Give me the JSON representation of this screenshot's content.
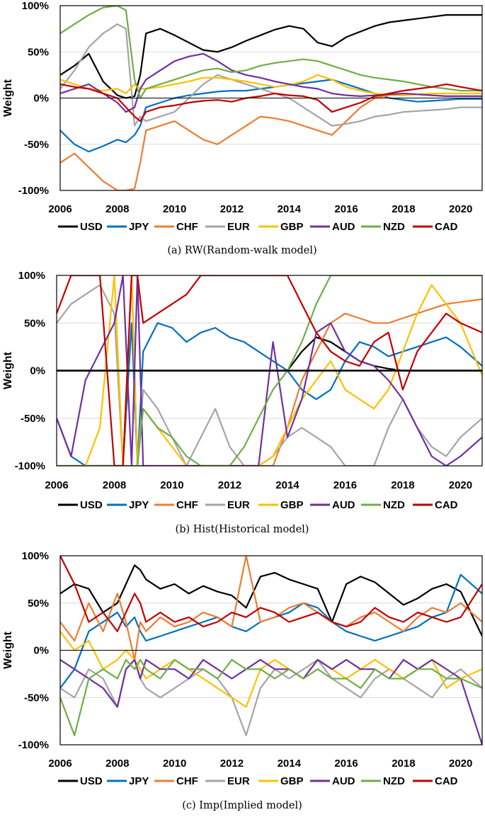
{
  "chart_data": [
    {
      "type": "line",
      "title": "",
      "caption": "(a) RW(Random-walk model)",
      "xlabel": "",
      "ylabel": "Weight",
      "xlim": [
        2006,
        2020.75
      ],
      "ylim": [
        -100,
        100
      ],
      "x_ticks": [
        "2006",
        "2008",
        "2010",
        "2012",
        "2014",
        "2016",
        "2018",
        "2020"
      ],
      "y_ticks": [
        "100%",
        "50%",
        "0%",
        "-50%",
        "-100%"
      ],
      "x": [
        2006,
        2006.5,
        2007,
        2007.5,
        2008,
        2008.3,
        2008.6,
        2008.8,
        2009,
        2009.5,
        2010,
        2010.5,
        2011,
        2011.5,
        2012,
        2012.5,
        2013,
        2013.5,
        2014,
        2014.5,
        2015,
        2015.5,
        2016,
        2016.5,
        2017,
        2017.5,
        2018,
        2018.5,
        2019,
        2019.5,
        2020,
        2020.75
      ],
      "series": [
        {
          "name": "USD",
          "values": [
            25,
            35,
            48,
            18,
            3,
            0,
            2,
            25,
            70,
            75,
            68,
            60,
            52,
            50,
            55,
            62,
            68,
            74,
            78,
            75,
            60,
            56,
            66,
            72,
            78,
            82,
            84,
            86,
            88,
            90,
            90,
            90
          ]
        },
        {
          "name": "JPY",
          "values": [
            -35,
            -50,
            -58,
            -52,
            -45,
            -48,
            -40,
            -30,
            -10,
            -5,
            0,
            3,
            5,
            7,
            8,
            8,
            10,
            12,
            14,
            16,
            18,
            20,
            15,
            10,
            5,
            0,
            -2,
            -4,
            -3,
            -2,
            -1,
            -1
          ]
        },
        {
          "name": "CHF",
          "values": [
            -70,
            -60,
            -75,
            -90,
            -100,
            -100,
            -98,
            -70,
            -35,
            -30,
            -25,
            -35,
            -45,
            -50,
            -40,
            -30,
            -20,
            -22,
            -25,
            -30,
            -35,
            -40,
            -25,
            -10,
            0,
            3,
            5,
            4,
            3,
            2,
            2,
            2
          ]
        },
        {
          "name": "EUR",
          "values": [
            10,
            30,
            55,
            70,
            80,
            75,
            -30,
            -20,
            -25,
            -20,
            -15,
            0,
            15,
            25,
            20,
            15,
            10,
            5,
            0,
            -10,
            -20,
            -30,
            -28,
            -25,
            -20,
            -18,
            -15,
            -14,
            -13,
            -12,
            -10,
            -10
          ]
        },
        {
          "name": "GBP",
          "values": [
            20,
            15,
            10,
            8,
            10,
            5,
            15,
            10,
            10,
            12,
            15,
            18,
            22,
            22,
            20,
            18,
            15,
            12,
            14,
            18,
            25,
            20,
            12,
            8,
            5,
            3,
            3,
            4,
            5,
            5,
            5,
            5
          ]
        },
        {
          "name": "AUD",
          "values": [
            5,
            10,
            15,
            5,
            -5,
            -15,
            -10,
            10,
            20,
            30,
            40,
            45,
            48,
            40,
            30,
            25,
            22,
            18,
            15,
            12,
            10,
            5,
            3,
            2,
            3,
            4,
            5,
            4,
            3,
            2,
            2,
            2
          ]
        },
        {
          "name": "NZD",
          "values": [
            70,
            80,
            90,
            98,
            100,
            95,
            20,
            0,
            10,
            15,
            20,
            25,
            30,
            32,
            28,
            30,
            35,
            38,
            40,
            42,
            40,
            35,
            30,
            25,
            22,
            20,
            18,
            15,
            12,
            10,
            8,
            8
          ]
        },
        {
          "name": "CAD",
          "values": [
            15,
            12,
            10,
            5,
            0,
            -10,
            -20,
            -25,
            -15,
            -10,
            -8,
            -5,
            -3,
            -2,
            -4,
            0,
            2,
            5,
            3,
            2,
            -2,
            -15,
            -10,
            -5,
            2,
            5,
            8,
            10,
            12,
            15,
            12,
            8
          ]
        }
      ]
    },
    {
      "type": "line",
      "title": "",
      "caption": "(b) Hist(Historical model)",
      "xlabel": "",
      "ylabel": "Weight",
      "xlim": [
        2006,
        2020.75
      ],
      "ylim": [
        -100,
        100
      ],
      "x_ticks": [
        "2006",
        "2008",
        "2010",
        "2012",
        "2014",
        "2016",
        "2018",
        "2020"
      ],
      "y_ticks": [
        "100%",
        "50%",
        "0%",
        "-50%",
        "-100%"
      ],
      "x": [
        2006,
        2006.5,
        2007,
        2007.5,
        2008,
        2008.3,
        2008.6,
        2008.8,
        2009,
        2009.5,
        2010,
        2010.5,
        2011,
        2011.5,
        2012,
        2012.5,
        2013,
        2013.5,
        2014,
        2014.5,
        2015,
        2015.5,
        2016,
        2016.5,
        2017,
        2017.5,
        2018,
        2018.5,
        2019,
        2019.5,
        2020,
        2020.75
      ],
      "series": [
        {
          "name": "USD",
          "values": [
            0,
            0,
            0,
            0,
            0,
            0,
            0,
            0,
            0,
            0,
            0,
            0,
            0,
            0,
            0,
            0,
            0,
            0,
            0,
            20,
            35,
            30,
            20,
            10,
            5,
            2,
            0,
            0,
            0,
            0,
            0,
            0
          ]
        },
        {
          "name": "JPY",
          "values": [
            -50,
            -90,
            -100,
            -100,
            -100,
            -100,
            50,
            -100,
            20,
            50,
            45,
            30,
            40,
            45,
            35,
            30,
            20,
            10,
            0,
            -20,
            -30,
            -20,
            10,
            30,
            25,
            15,
            20,
            25,
            30,
            35,
            25,
            5
          ]
        },
        {
          "name": "CHF",
          "values": [
            -100,
            -100,
            -100,
            -100,
            -100,
            -100,
            100,
            -100,
            -100,
            -100,
            -100,
            -100,
            -100,
            -100,
            -100,
            -100,
            -100,
            -100,
            -60,
            -10,
            20,
            50,
            60,
            55,
            50,
            50,
            55,
            60,
            65,
            70,
            72,
            75
          ]
        },
        {
          "name": "EUR",
          "values": [
            50,
            70,
            80,
            90,
            60,
            -100,
            100,
            -100,
            -20,
            -40,
            -70,
            -100,
            -70,
            -40,
            -80,
            -100,
            -100,
            -90,
            -70,
            -60,
            -70,
            -80,
            -100,
            -100,
            -100,
            -60,
            -30,
            -60,
            -80,
            -90,
            -70,
            -50
          ]
        },
        {
          "name": "GBP",
          "values": [
            -100,
            -100,
            -100,
            -60,
            100,
            -100,
            100,
            -100,
            -40,
            -60,
            -80,
            -100,
            -100,
            -100,
            -100,
            -100,
            -100,
            -90,
            -60,
            -30,
            -10,
            10,
            -20,
            -30,
            -40,
            -20,
            20,
            60,
            90,
            70,
            50,
            -5
          ]
        },
        {
          "name": "AUD",
          "values": [
            -50,
            -90,
            -10,
            20,
            50,
            100,
            -100,
            100,
            -100,
            -100,
            -100,
            -100,
            -100,
            -100,
            -100,
            -100,
            -100,
            30,
            -70,
            -30,
            40,
            50,
            20,
            10,
            5,
            -10,
            -30,
            -60,
            -90,
            -100,
            -90,
            -70
          ]
        },
        {
          "name": "NZD",
          "values": [
            -100,
            -100,
            -100,
            -100,
            -100,
            -100,
            -100,
            -100,
            -40,
            -60,
            -70,
            -90,
            -100,
            -100,
            -100,
            -80,
            -50,
            -20,
            0,
            30,
            70,
            100,
            100,
            100,
            100,
            100,
            100,
            100,
            100,
            100,
            100,
            100
          ]
        },
        {
          "name": "CAD",
          "values": [
            60,
            100,
            100,
            100,
            -100,
            -100,
            100,
            100,
            50,
            60,
            70,
            80,
            100,
            100,
            100,
            100,
            100,
            100,
            100,
            70,
            40,
            20,
            10,
            5,
            30,
            40,
            -20,
            20,
            40,
            60,
            50,
            40
          ]
        }
      ]
    },
    {
      "type": "line",
      "title": "",
      "caption": "(c) Imp(Implied model)",
      "xlabel": "",
      "ylabel": "Weight",
      "xlim": [
        2006,
        2020.75
      ],
      "ylim": [
        -100,
        100
      ],
      "x_ticks": [
        "2006",
        "2008",
        "2010",
        "2012",
        "2014",
        "2016",
        "2018",
        "2020"
      ],
      "y_ticks": [
        "100%",
        "50%",
        "0%",
        "-50%",
        "-100%"
      ],
      "x": [
        2006,
        2006.5,
        2007,
        2007.5,
        2008,
        2008.3,
        2008.6,
        2008.8,
        2009,
        2009.5,
        2010,
        2010.5,
        2011,
        2011.5,
        2012,
        2012.5,
        2013,
        2013.5,
        2014,
        2014.5,
        2015,
        2015.5,
        2016,
        2016.5,
        2017,
        2017.5,
        2018,
        2018.5,
        2019,
        2019.5,
        2020,
        2020.75
      ],
      "series": [
        {
          "name": "USD",
          "values": [
            60,
            70,
            65,
            40,
            50,
            70,
            90,
            85,
            75,
            65,
            70,
            60,
            68,
            62,
            58,
            45,
            78,
            82,
            75,
            70,
            65,
            30,
            70,
            78,
            72,
            60,
            48,
            55,
            65,
            70,
            62,
            15
          ]
        },
        {
          "name": "JPY",
          "values": [
            -40,
            -20,
            20,
            30,
            40,
            25,
            35,
            20,
            10,
            15,
            20,
            25,
            30,
            35,
            25,
            20,
            30,
            35,
            40,
            50,
            45,
            30,
            20,
            15,
            10,
            15,
            20,
            25,
            35,
            40,
            80,
            60
          ]
        },
        {
          "name": "CHF",
          "values": [
            30,
            10,
            50,
            20,
            60,
            30,
            -10,
            30,
            20,
            35,
            25,
            30,
            40,
            35,
            25,
            100,
            30,
            35,
            45,
            50,
            40,
            30,
            25,
            35,
            40,
            30,
            20,
            35,
            45,
            40,
            50,
            30
          ]
        },
        {
          "name": "EUR",
          "values": [
            -40,
            -50,
            -20,
            -30,
            -60,
            -20,
            -10,
            -30,
            -40,
            -50,
            -40,
            -30,
            -20,
            -30,
            -50,
            -90,
            -40,
            -20,
            -30,
            -20,
            -10,
            -30,
            -40,
            -50,
            -30,
            -20,
            -30,
            -40,
            -50,
            -30,
            -20,
            -40
          ]
        },
        {
          "name": "GBP",
          "values": [
            20,
            0,
            10,
            -20,
            -10,
            0,
            -10,
            -20,
            -30,
            -20,
            -10,
            -20,
            -30,
            -40,
            -50,
            -60,
            -20,
            -10,
            -20,
            -30,
            -10,
            -20,
            -30,
            -20,
            -10,
            -20,
            -30,
            -20,
            -10,
            -40,
            -30,
            -20
          ]
        },
        {
          "name": "AUD",
          "values": [
            -10,
            -20,
            -30,
            -40,
            -60,
            -20,
            -10,
            -30,
            -10,
            -20,
            -20,
            -30,
            -10,
            -20,
            -30,
            -20,
            -10,
            -20,
            -20,
            -30,
            -10,
            -20,
            -10,
            -20,
            -20,
            -30,
            -10,
            -20,
            -10,
            -20,
            -30,
            -100
          ]
        },
        {
          "name": "NZD",
          "values": [
            -50,
            -90,
            -30,
            -20,
            -30,
            -10,
            -20,
            -10,
            -20,
            -30,
            -10,
            -20,
            -20,
            -30,
            -10,
            -20,
            -20,
            -30,
            -20,
            -30,
            -20,
            -30,
            -30,
            -40,
            -20,
            -30,
            -30,
            -20,
            -20,
            -30,
            -30,
            -40
          ]
        },
        {
          "name": "CAD",
          "values": [
            100,
            70,
            30,
            40,
            20,
            40,
            60,
            50,
            30,
            40,
            30,
            35,
            25,
            30,
            40,
            35,
            45,
            40,
            30,
            35,
            40,
            30,
            25,
            30,
            45,
            35,
            30,
            40,
            35,
            30,
            35,
            70
          ]
        }
      ]
    }
  ],
  "legend": {
    "items": [
      {
        "label": "USD",
        "color": "#000000"
      },
      {
        "label": "JPY",
        "color": "#0070C0"
      },
      {
        "label": "CHF",
        "color": "#ED7D31"
      },
      {
        "label": "EUR",
        "color": "#A5A5A5"
      },
      {
        "label": "GBP",
        "color": "#FFC000"
      },
      {
        "label": "AUD",
        "color": "#7030A0"
      },
      {
        "label": "NZD",
        "color": "#70AD47"
      },
      {
        "label": "CAD",
        "color": "#C00000"
      }
    ]
  }
}
